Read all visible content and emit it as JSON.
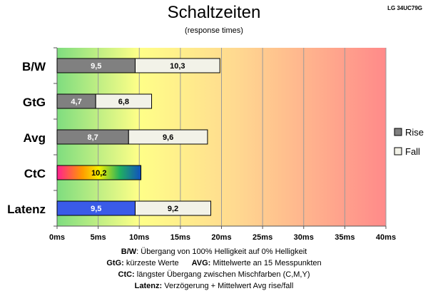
{
  "header": {
    "title": "Schaltzeiten",
    "subtitle": "(response times)",
    "model": "LG 34UC79G"
  },
  "chart_data": {
    "type": "bar",
    "orientation": "horizontal",
    "stacked": true,
    "categories": [
      "B/W",
      "GtG",
      "Avg",
      "CtC",
      "Latenz"
    ],
    "series": [
      {
        "name": "Rise",
        "values": [
          9.5,
          4.7,
          8.7,
          null,
          9.5
        ],
        "color": "#808080"
      },
      {
        "name": "Fall",
        "values": [
          10.3,
          6.8,
          9.6,
          null,
          9.2
        ],
        "color": "#f2f2e8"
      }
    ],
    "single_bars": [
      {
        "category": "CtC",
        "value": 10.2,
        "label": "10,2",
        "fill": "rainbow"
      }
    ],
    "special_colors": {
      "Latenz_rise": "#3a5be8"
    },
    "value_labels": {
      "B/W": [
        "9,5",
        "10,3"
      ],
      "GtG": [
        "4,7",
        "6,8"
      ],
      "Avg": [
        "8,7",
        "9,6"
      ],
      "Latenz": [
        "9,5",
        "9,2"
      ]
    },
    "x_ticks": [
      "0ms",
      "5ms",
      "10ms",
      "15ms",
      "20ms",
      "25ms",
      "30ms",
      "35ms",
      "40ms"
    ],
    "xlim": [
      0,
      40
    ],
    "background_gradient": [
      "#7fdd7f",
      "#ffff88",
      "#ffd890",
      "#ff8a8a"
    ],
    "grid": true,
    "legend_position": "right"
  },
  "notes": {
    "line1_key": "B/W",
    "line1_text": ":  Übergang von 100% Helligkeit auf 0% Helligkeit",
    "line2_key": "GtG:",
    "line2_text": " kürzeste  Werte",
    "line2b_key": "AVG:",
    "line2b_text": " Mittelwerte  an 15 Messpunkten",
    "line3_key": "CtC:",
    "line3_text": " längster Übergang  zwischen Mischfarben (C,M,Y)",
    "line4_key": "Latenz:",
    "line4_text": " Verzögerung  + Mittelwert  Avg rise/fall"
  }
}
